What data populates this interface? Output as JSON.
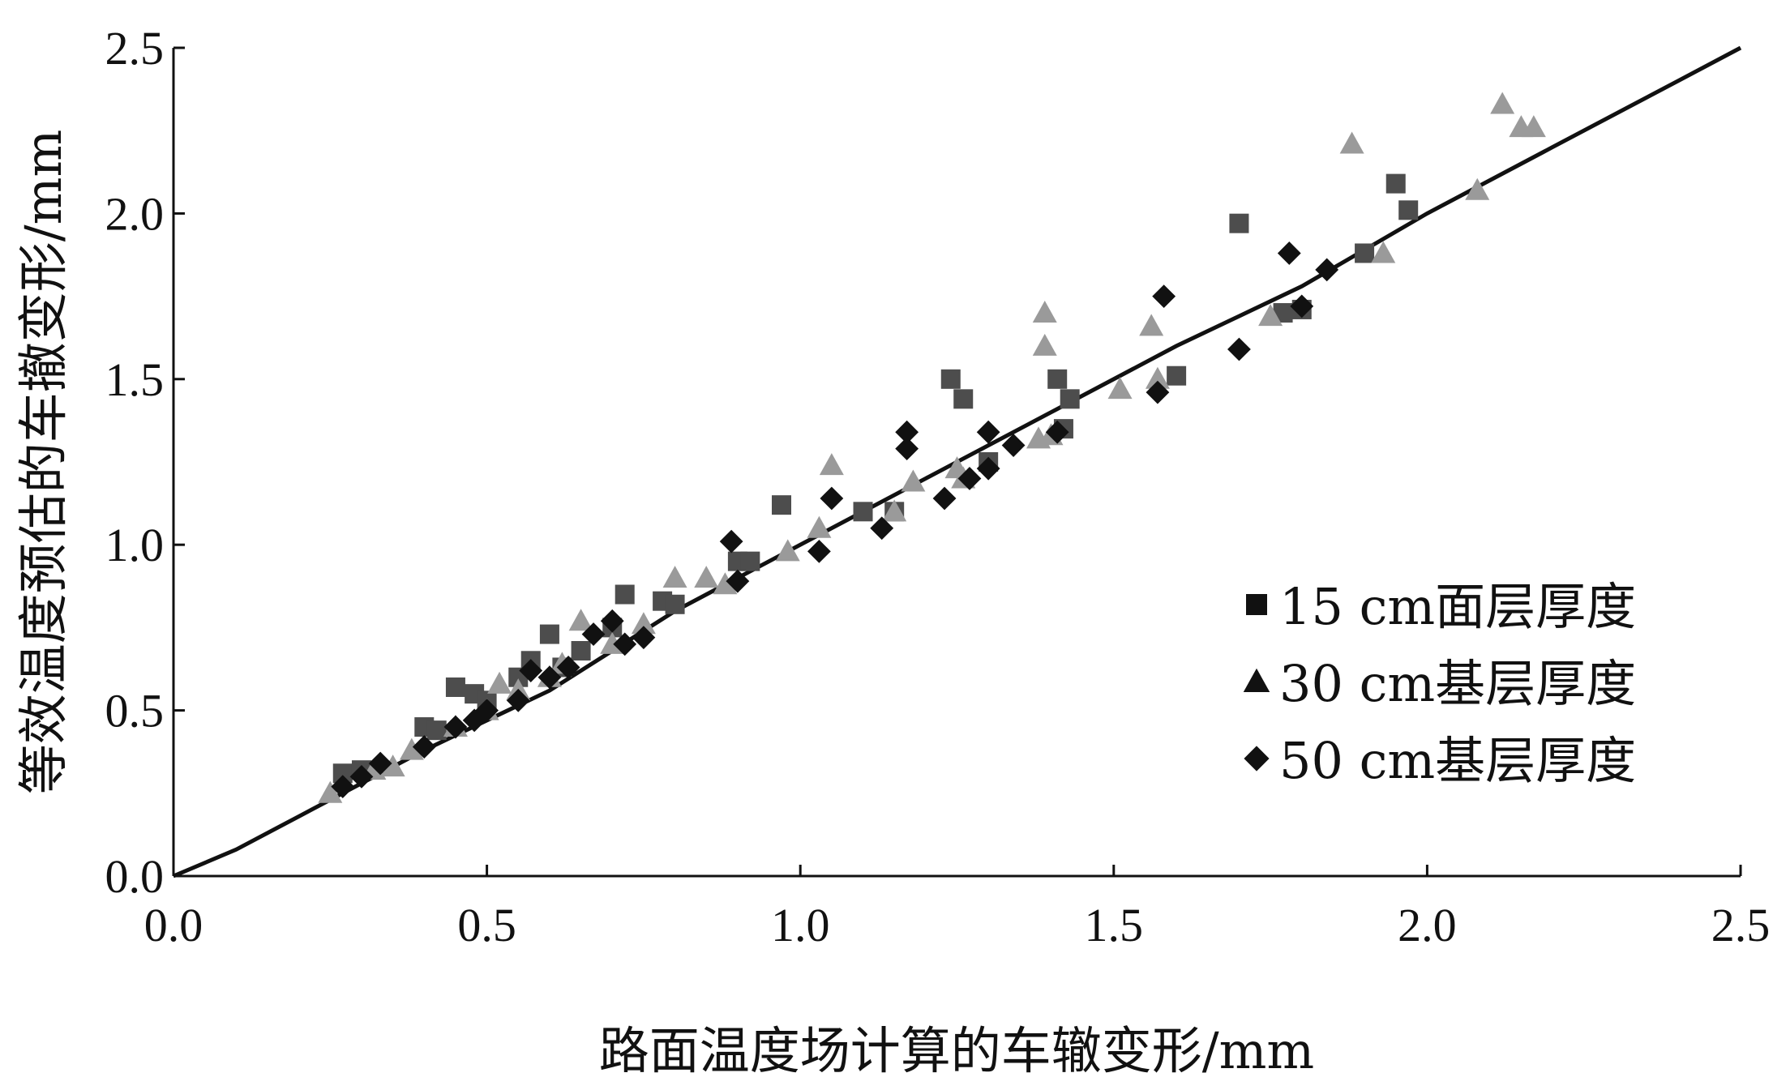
{
  "chart_data": {
    "type": "scatter",
    "xlabel": "路面温度场计算的车辙变形/mm",
    "ylabel": "等效温度预估的车撤变形/mm",
    "xlim": [
      0,
      2.5
    ],
    "ylim": [
      0,
      2.5
    ],
    "x_ticks": [
      "0.0",
      "0.5",
      "1.0",
      "1.5",
      "2.0",
      "2.5"
    ],
    "y_ticks": [
      "0.0",
      "0.5",
      "1.0",
      "1.5",
      "2.0",
      "2.5"
    ],
    "grid": false,
    "legend_position": "right",
    "fit_line": [
      [
        0,
        0
      ],
      [
        0.1,
        0.08
      ],
      [
        0.2,
        0.18
      ],
      [
        0.4,
        0.38
      ],
      [
        0.6,
        0.56
      ],
      [
        0.8,
        0.8
      ],
      [
        1.0,
        1.0
      ],
      [
        1.2,
        1.2
      ],
      [
        1.4,
        1.4
      ],
      [
        1.6,
        1.6
      ],
      [
        1.8,
        1.78
      ],
      [
        2.0,
        2.0
      ],
      [
        2.2,
        2.2
      ],
      [
        2.4,
        2.4
      ],
      [
        2.5,
        2.5
      ]
    ],
    "series": [
      {
        "name": "15 cm面层厚度",
        "marker": "square",
        "color": "#4d4d4d",
        "points": [
          [
            0.27,
            0.31
          ],
          [
            0.3,
            0.32
          ],
          [
            0.4,
            0.45
          ],
          [
            0.42,
            0.44
          ],
          [
            0.45,
            0.57
          ],
          [
            0.48,
            0.55
          ],
          [
            0.5,
            0.53
          ],
          [
            0.55,
            0.6
          ],
          [
            0.57,
            0.65
          ],
          [
            0.6,
            0.73
          ],
          [
            0.62,
            0.63
          ],
          [
            0.65,
            0.68
          ],
          [
            0.7,
            0.75
          ],
          [
            0.72,
            0.85
          ],
          [
            0.78,
            0.83
          ],
          [
            0.8,
            0.82
          ],
          [
            0.9,
            0.95
          ],
          [
            0.92,
            0.95
          ],
          [
            0.97,
            1.12
          ],
          [
            1.1,
            1.1
          ],
          [
            1.15,
            1.1
          ],
          [
            1.24,
            1.5
          ],
          [
            1.26,
            1.44
          ],
          [
            1.3,
            1.25
          ],
          [
            1.41,
            1.5
          ],
          [
            1.42,
            1.35
          ],
          [
            1.43,
            1.44
          ],
          [
            1.6,
            1.51
          ],
          [
            1.7,
            1.97
          ],
          [
            1.77,
            1.7
          ],
          [
            1.8,
            1.71
          ],
          [
            1.9,
            1.88
          ],
          [
            1.95,
            2.09
          ],
          [
            1.97,
            2.01
          ]
        ]
      },
      {
        "name": "30 cm基层厚度",
        "marker": "triangle",
        "color": "#9a9a9a",
        "points": [
          [
            0.25,
            0.25
          ],
          [
            0.32,
            0.32
          ],
          [
            0.35,
            0.33
          ],
          [
            0.38,
            0.38
          ],
          [
            0.45,
            0.45
          ],
          [
            0.5,
            0.5
          ],
          [
            0.52,
            0.58
          ],
          [
            0.55,
            0.56
          ],
          [
            0.6,
            0.6
          ],
          [
            0.62,
            0.64
          ],
          [
            0.65,
            0.77
          ],
          [
            0.7,
            0.7
          ],
          [
            0.75,
            0.76
          ],
          [
            0.8,
            0.9
          ],
          [
            0.85,
            0.9
          ],
          [
            0.88,
            0.88
          ],
          [
            0.98,
            0.98
          ],
          [
            1.03,
            1.05
          ],
          [
            1.05,
            1.24
          ],
          [
            1.15,
            1.1
          ],
          [
            1.18,
            1.19
          ],
          [
            1.25,
            1.23
          ],
          [
            1.26,
            1.2
          ],
          [
            1.38,
            1.32
          ],
          [
            1.39,
            1.7
          ],
          [
            1.39,
            1.6
          ],
          [
            1.4,
            1.33
          ],
          [
            1.51,
            1.47
          ],
          [
            1.56,
            1.66
          ],
          [
            1.57,
            1.5
          ],
          [
            1.75,
            1.69
          ],
          [
            1.88,
            2.21
          ],
          [
            1.93,
            1.88
          ],
          [
            2.08,
            2.07
          ],
          [
            2.12,
            2.33
          ],
          [
            2.15,
            2.26
          ],
          [
            2.17,
            2.26
          ]
        ]
      },
      {
        "name": "50 cm基层厚度",
        "marker": "diamond",
        "color": "#111111",
        "points": [
          [
            0.27,
            0.27
          ],
          [
            0.3,
            0.3
          ],
          [
            0.33,
            0.34
          ],
          [
            0.4,
            0.39
          ],
          [
            0.45,
            0.45
          ],
          [
            0.48,
            0.47
          ],
          [
            0.5,
            0.5
          ],
          [
            0.55,
            0.53
          ],
          [
            0.57,
            0.62
          ],
          [
            0.6,
            0.6
          ],
          [
            0.63,
            0.63
          ],
          [
            0.67,
            0.73
          ],
          [
            0.7,
            0.77
          ],
          [
            0.72,
            0.7
          ],
          [
            0.75,
            0.72
          ],
          [
            0.89,
            1.01
          ],
          [
            0.9,
            0.89
          ],
          [
            1.03,
            0.98
          ],
          [
            1.05,
            1.14
          ],
          [
            1.13,
            1.05
          ],
          [
            1.17,
            1.34
          ],
          [
            1.17,
            1.29
          ],
          [
            1.23,
            1.14
          ],
          [
            1.27,
            1.2
          ],
          [
            1.3,
            1.34
          ],
          [
            1.3,
            1.23
          ],
          [
            1.34,
            1.3
          ],
          [
            1.41,
            1.34
          ],
          [
            1.57,
            1.46
          ],
          [
            1.58,
            1.75
          ],
          [
            1.7,
            1.59
          ],
          [
            1.78,
            1.88
          ],
          [
            1.8,
            1.72
          ],
          [
            1.84,
            1.83
          ]
        ]
      }
    ]
  }
}
